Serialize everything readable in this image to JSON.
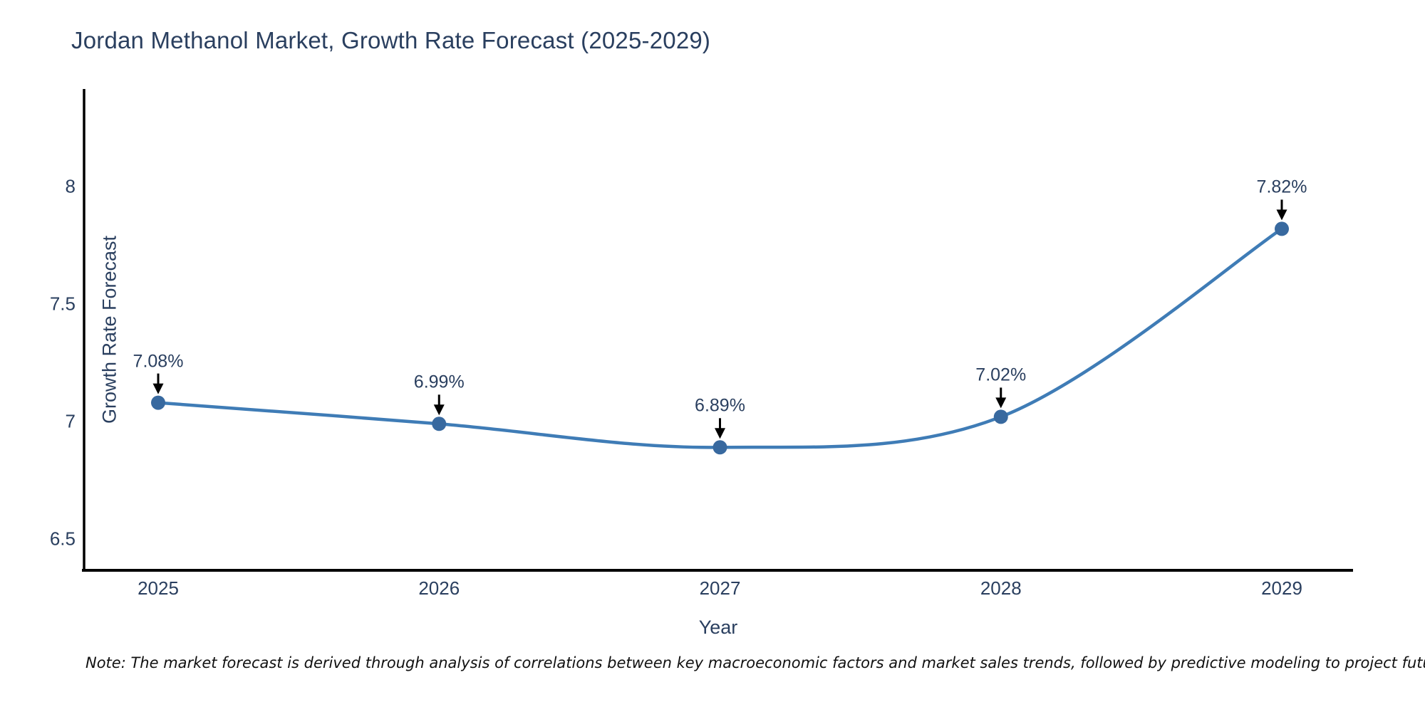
{
  "title": "Jordan Methanol Market, Growth Rate Forecast (2025-2029)",
  "note": "Note: The market forecast is derived through analysis of correlations between key macroeconomic factors and market sales trends, followed by predictive modeling to project future sales",
  "chart_data": {
    "type": "line",
    "title": "Jordan Methanol Market, Growth Rate Forecast (2025-2029)",
    "categories": [
      "2025",
      "2026",
      "2027",
      "2028",
      "2029"
    ],
    "series": [
      {
        "name": "Growth Rate Forecast",
        "values": [
          7.08,
          6.99,
          6.89,
          7.02,
          7.82
        ]
      }
    ],
    "point_labels": [
      "7.08%",
      "6.99%",
      "6.89%",
      "7.02%",
      "7.82%"
    ],
    "xlabel": "Year",
    "ylabel": "Growth Rate Forecast",
    "yticks": [
      {
        "value": 6.5,
        "label": "6.5"
      },
      {
        "value": 7,
        "label": "7"
      },
      {
        "value": 7.5,
        "label": "7.5"
      },
      {
        "value": 8,
        "label": "8"
      }
    ],
    "ylim": [
      6.37,
      8.43
    ],
    "grid": false,
    "legend": false,
    "line_shape": "spline",
    "line_color": "#3f7cb6",
    "marker_color": "#38699f",
    "axis_color": "#000000",
    "arrow_color": "#000000",
    "text_color": "#2a3f5f"
  }
}
